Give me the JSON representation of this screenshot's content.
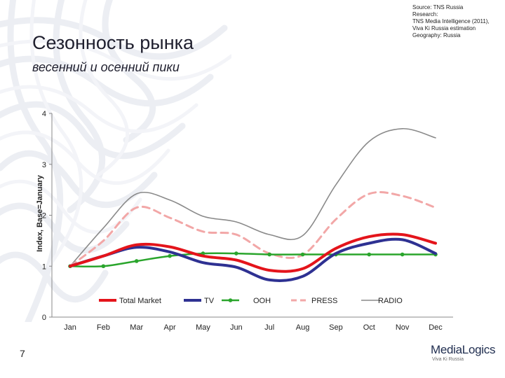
{
  "header": {
    "source_lines": [
      "Source: TNS Russia",
      "Research:",
      "TNS Media Intelligence (2011),",
      "Viva Ki Russia estimation",
      "Geography: Russia"
    ],
    "title": "Сезонность рынка",
    "subtitle": "весенний и осенний пики"
  },
  "footer": {
    "page_number": "7",
    "logo_main": "MediaLogics",
    "logo_sub": "Viva Ki Russia"
  },
  "chart_data": {
    "type": "line",
    "title": "",
    "xlabel": "",
    "ylabel": "Index, Base=January",
    "categories": [
      "Jan",
      "Feb",
      "Mar",
      "Apr",
      "May",
      "Jun",
      "Jul",
      "Aug",
      "Sep",
      "Oct",
      "Nov",
      "Dec"
    ],
    "ylim": [
      0,
      4
    ],
    "yticks": [
      "0",
      "1",
      "2",
      "3",
      "4"
    ],
    "grid": false,
    "legend_position": "bottom-inside",
    "series": [
      {
        "name": "Total Market",
        "color": "#e4141b",
        "style": "solid-thick",
        "values": [
          1.0,
          1.2,
          1.42,
          1.38,
          1.2,
          1.12,
          0.92,
          0.95,
          1.35,
          1.58,
          1.62,
          1.45
        ]
      },
      {
        "name": "TV",
        "color": "#2e3192",
        "style": "solid-thick",
        "values": [
          1.0,
          1.2,
          1.37,
          1.28,
          1.07,
          0.98,
          0.73,
          0.8,
          1.25,
          1.45,
          1.52,
          1.25
        ]
      },
      {
        "name": "OOH",
        "color": "#2aa52c",
        "style": "solid-markers",
        "values": [
          1.0,
          1.0,
          1.1,
          1.2,
          1.25,
          1.25,
          1.23,
          1.23,
          1.23,
          1.23,
          1.23,
          1.23
        ]
      },
      {
        "name": "PRESS",
        "color": "#f2a7a7",
        "style": "dashed",
        "values": [
          1.0,
          1.5,
          2.15,
          1.95,
          1.68,
          1.62,
          1.25,
          1.22,
          1.92,
          2.42,
          2.38,
          2.15
        ]
      },
      {
        "name": "RADIO",
        "color": "#8a8a8a",
        "style": "thin",
        "values": [
          1.0,
          1.75,
          2.42,
          2.3,
          1.98,
          1.87,
          1.62,
          1.6,
          2.6,
          3.45,
          3.7,
          3.52
        ]
      }
    ]
  }
}
